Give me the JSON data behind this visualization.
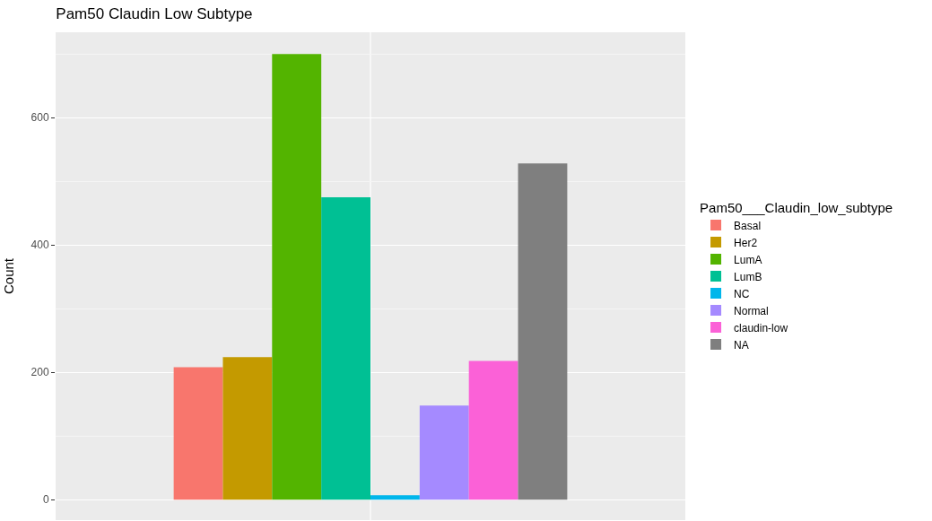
{
  "chart_data": {
    "type": "bar",
    "title": "Pam50 Claudin Low Subtype",
    "ylabel": "Count",
    "legend_title": "Pam50___Claudin_low_subtype",
    "categories": [
      null
    ],
    "series": [
      {
        "name": "Basal",
        "color": "#f8766d",
        "values": [
          208
        ]
      },
      {
        "name": "Her2",
        "color": "#c49a00",
        "values": [
          224
        ]
      },
      {
        "name": "LumA",
        "color": "#53b400",
        "values": [
          700
        ]
      },
      {
        "name": "LumB",
        "color": "#00c094",
        "values": [
          475
        ]
      },
      {
        "name": "NC",
        "color": "#00b6eb",
        "values": [
          7
        ]
      },
      {
        "name": "Normal",
        "color": "#a58aff",
        "values": [
          148
        ]
      },
      {
        "name": "claudin-low",
        "color": "#fb61d7",
        "values": [
          218
        ]
      },
      {
        "name": "NA",
        "color": "#7f7f7f",
        "values": [
          528
        ]
      }
    ],
    "ylim": [
      -32,
      734
    ],
    "yticks": [
      0,
      200,
      400,
      600
    ],
    "grid": true,
    "legend": "right"
  }
}
